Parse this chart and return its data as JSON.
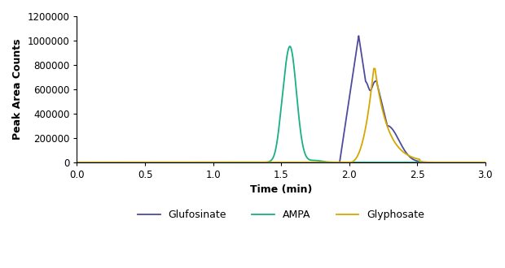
{
  "title": "",
  "xlabel": "Time (min)",
  "ylabel": "Peak Area Counts",
  "xlim": [
    0,
    3
  ],
  "ylim": [
    0,
    1200000
  ],
  "yticks": [
    0,
    200000,
    400000,
    600000,
    800000,
    1000000,
    1200000
  ],
  "xticks": [
    0,
    0.5,
    1,
    1.5,
    2,
    2.5,
    3
  ],
  "colors": {
    "glufosinate": "#4e4b9c",
    "ampa": "#1aaf84",
    "glyphosate": "#d4a800"
  },
  "legend": [
    "Glufosinate",
    "AMPA",
    "Glyphosate"
  ],
  "background": "#ffffff",
  "linewidth": 1.3
}
